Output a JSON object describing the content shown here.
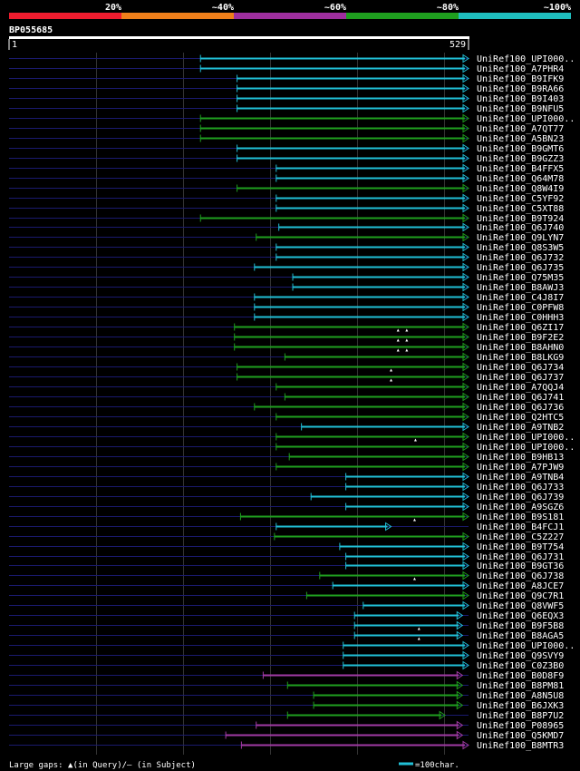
{
  "identity_scale": {
    "labels": [
      "20%",
      "~40%",
      "~60%",
      "~80%",
      "~100%"
    ],
    "colors": [
      "#ee1c2e",
      "#ef7f1a",
      "#9f2f9f",
      "#1f9f1f",
      "#1fbfbf"
    ]
  },
  "query": {
    "name": "BP055685",
    "start": "1",
    "end": "529",
    "length": 529
  },
  "hits": [
    {
      "label": "UniRef100_UPI000..",
      "start": 221,
      "end": 529,
      "color": "cyan",
      "marks": []
    },
    {
      "label": "UniRef100_A7PHR4",
      "start": 221,
      "end": 529,
      "color": "cyan",
      "marks": []
    },
    {
      "label": "UniRef100_B9IFK9",
      "start": 263,
      "end": 529,
      "color": "cyan",
      "marks": []
    },
    {
      "label": "UniRef100_B9RA66",
      "start": 263,
      "end": 529,
      "color": "cyan",
      "marks": []
    },
    {
      "label": "UniRef100_B9I403",
      "start": 263,
      "end": 529,
      "color": "cyan",
      "marks": []
    },
    {
      "label": "UniRef100_B9NFU5",
      "start": 263,
      "end": 529,
      "color": "cyan",
      "marks": []
    },
    {
      "label": "UniRef100_UPI000..",
      "start": 221,
      "end": 529,
      "color": "green",
      "marks": []
    },
    {
      "label": "UniRef100_A7QT77",
      "start": 221,
      "end": 529,
      "color": "green",
      "marks": []
    },
    {
      "label": "UniRef100_A5BN23",
      "start": 221,
      "end": 529,
      "color": "green",
      "marks": []
    },
    {
      "label": "UniRef100_B9GMT6",
      "start": 263,
      "end": 529,
      "color": "cyan",
      "marks": []
    },
    {
      "label": "UniRef100_B9GZZ3",
      "start": 263,
      "end": 529,
      "color": "cyan",
      "marks": []
    },
    {
      "label": "UniRef100_B4FFX5",
      "start": 308,
      "end": 529,
      "color": "cyan",
      "marks": []
    },
    {
      "label": "UniRef100_Q64M78",
      "start": 308,
      "end": 529,
      "color": "cyan",
      "marks": []
    },
    {
      "label": "UniRef100_Q8W4I9",
      "start": 263,
      "end": 529,
      "color": "green",
      "marks": []
    },
    {
      "label": "UniRef100_C5YF92",
      "start": 308,
      "end": 529,
      "color": "cyan",
      "marks": []
    },
    {
      "label": "UniRef100_C5XT88",
      "start": 308,
      "end": 529,
      "color": "cyan",
      "marks": []
    },
    {
      "label": "UniRef100_B9T924",
      "start": 221,
      "end": 529,
      "color": "green",
      "marks": []
    },
    {
      "label": "UniRef100_Q6J740",
      "start": 311,
      "end": 529,
      "color": "cyan",
      "marks": []
    },
    {
      "label": "UniRef100_Q9LYN7",
      "start": 285,
      "end": 529,
      "color": "green",
      "marks": []
    },
    {
      "label": "UniRef100_Q8S3W5",
      "start": 308,
      "end": 529,
      "color": "cyan",
      "marks": []
    },
    {
      "label": "UniRef100_Q6J732",
      "start": 308,
      "end": 529,
      "color": "cyan",
      "marks": []
    },
    {
      "label": "UniRef100_Q6J735",
      "start": 283,
      "end": 529,
      "color": "cyan",
      "marks": []
    },
    {
      "label": "UniRef100_Q75M35",
      "start": 327,
      "end": 529,
      "color": "cyan",
      "marks": []
    },
    {
      "label": "UniRef100_B8AWJ3",
      "start": 327,
      "end": 529,
      "color": "cyan",
      "marks": []
    },
    {
      "label": "UniRef100_C4J8I7",
      "start": 283,
      "end": 529,
      "color": "cyan",
      "marks": []
    },
    {
      "label": "UniRef100_C0PFW8",
      "start": 283,
      "end": 529,
      "color": "cyan",
      "marks": []
    },
    {
      "label": "UniRef100_C0HHH3",
      "start": 283,
      "end": 529,
      "color": "cyan",
      "marks": []
    },
    {
      "label": "UniRef100_Q6ZI17",
      "start": 260,
      "end": 529,
      "color": "green",
      "marks": [
        448,
        458
      ]
    },
    {
      "label": "UniRef100_B9F2E2",
      "start": 260,
      "end": 529,
      "color": "green",
      "marks": [
        448,
        458
      ]
    },
    {
      "label": "UniRef100_B8AHN0",
      "start": 260,
      "end": 529,
      "color": "green",
      "marks": [
        448,
        458
      ]
    },
    {
      "label": "UniRef100_B8LKG9",
      "start": 318,
      "end": 529,
      "color": "green",
      "marks": []
    },
    {
      "label": "UniRef100_Q6J734",
      "start": 263,
      "end": 529,
      "color": "green",
      "marks": [
        440
      ]
    },
    {
      "label": "UniRef100_Q6J737",
      "start": 263,
      "end": 529,
      "color": "green",
      "marks": [
        440
      ]
    },
    {
      "label": "UniRef100_A7QQJ4",
      "start": 308,
      "end": 529,
      "color": "green",
      "marks": []
    },
    {
      "label": "UniRef100_Q6J741",
      "start": 318,
      "end": 529,
      "color": "green",
      "marks": []
    },
    {
      "label": "UniRef100_Q6J736",
      "start": 283,
      "end": 529,
      "color": "green",
      "marks": []
    },
    {
      "label": "UniRef100_Q2HTC5",
      "start": 308,
      "end": 529,
      "color": "green",
      "marks": []
    },
    {
      "label": "UniRef100_A9TNB2",
      "start": 337,
      "end": 529,
      "color": "cyan",
      "marks": []
    },
    {
      "label": "UniRef100_UPI000..",
      "start": 308,
      "end": 529,
      "color": "green",
      "marks": [
        468
      ]
    },
    {
      "label": "UniRef100_UPI000..",
      "start": 308,
      "end": 529,
      "color": "green",
      "marks": []
    },
    {
      "label": "UniRef100_B9HB13",
      "start": 323,
      "end": 529,
      "color": "green",
      "marks": []
    },
    {
      "label": "UniRef100_A7PJW9",
      "start": 308,
      "end": 529,
      "color": "green",
      "marks": []
    },
    {
      "label": "UniRef100_A9TNB4",
      "start": 388,
      "end": 529,
      "color": "cyan",
      "marks": []
    },
    {
      "label": "UniRef100_Q6J733",
      "start": 388,
      "end": 529,
      "color": "cyan",
      "marks": []
    },
    {
      "label": "UniRef100_Q6J739",
      "start": 348,
      "end": 529,
      "color": "cyan",
      "marks": []
    },
    {
      "label": "UniRef100_A9SGZ6",
      "start": 388,
      "end": 529,
      "color": "cyan",
      "marks": []
    },
    {
      "label": "UniRef100_B9S181",
      "start": 267,
      "end": 529,
      "color": "green",
      "marks": [
        467
      ]
    },
    {
      "label": "UniRef100_B4FCJ1",
      "start": 308,
      "end": 440,
      "color": "cyan",
      "marks": []
    },
    {
      "label": "UniRef100_C5Z227",
      "start": 306,
      "end": 529,
      "color": "green",
      "marks": []
    },
    {
      "label": "UniRef100_B9T754",
      "start": 381,
      "end": 529,
      "color": "cyan",
      "marks": []
    },
    {
      "label": "UniRef100_Q6J731",
      "start": 388,
      "end": 529,
      "color": "cyan",
      "marks": []
    },
    {
      "label": "UniRef100_B9GT36",
      "start": 388,
      "end": 529,
      "color": "cyan",
      "marks": []
    },
    {
      "label": "UniRef100_Q6J738",
      "start": 358,
      "end": 529,
      "color": "green",
      "marks": [
        467
      ]
    },
    {
      "label": "UniRef100_A8JCE7",
      "start": 373,
      "end": 529,
      "color": "cyan",
      "marks": []
    },
    {
      "label": "UniRef100_Q9C7R1",
      "start": 343,
      "end": 529,
      "color": "green",
      "marks": []
    },
    {
      "label": "UniRef100_Q8VWF5",
      "start": 408,
      "end": 529,
      "color": "cyan",
      "marks": []
    },
    {
      "label": "UniRef100_Q6EQX3",
      "start": 398,
      "end": 522,
      "color": "cyan",
      "marks": []
    },
    {
      "label": "UniRef100_B9F5B8",
      "start": 398,
      "end": 522,
      "color": "cyan",
      "marks": [
        472
      ]
    },
    {
      "label": "UniRef100_B8AGA5",
      "start": 398,
      "end": 522,
      "color": "cyan",
      "marks": [
        472
      ]
    },
    {
      "label": "UniRef100_UPI000..",
      "start": 385,
      "end": 529,
      "color": "cyan",
      "marks": []
    },
    {
      "label": "UniRef100_Q9SVY9",
      "start": 385,
      "end": 529,
      "color": "cyan",
      "marks": []
    },
    {
      "label": "UniRef100_C0Z3B0",
      "start": 385,
      "end": 529,
      "color": "cyan",
      "marks": []
    },
    {
      "label": "UniRef100_B0D8F9",
      "start": 293,
      "end": 522,
      "color": "magenta",
      "marks": []
    },
    {
      "label": "UniRef100_B8PM81",
      "start": 321,
      "end": 522,
      "color": "green",
      "marks": []
    },
    {
      "label": "UniRef100_A8N5U8",
      "start": 351,
      "end": 522,
      "color": "green",
      "marks": []
    },
    {
      "label": "UniRef100_B6JXK3",
      "start": 351,
      "end": 522,
      "color": "green",
      "marks": []
    },
    {
      "label": "UniRef100_B8P7U2",
      "start": 321,
      "end": 502,
      "color": "green",
      "marks": []
    },
    {
      "label": "UniRef100_P08965",
      "start": 285,
      "end": 522,
      "color": "magenta",
      "marks": []
    },
    {
      "label": "UniRef100_Q5KMD7",
      "start": 250,
      "end": 522,
      "color": "magenta",
      "marks": []
    },
    {
      "label": "UniRef100_B8MTR3",
      "start": 268,
      "end": 529,
      "color": "magenta",
      "marks": []
    }
  ],
  "colors": {
    "cyan": "#21bfd6",
    "green": "#1f9f1f",
    "magenta": "#a03aa3",
    "line": "#1a1a6e",
    "grid": "#333333",
    "mark": "#ffffff"
  },
  "legend": {
    "gaps_text": "Large gaps: ▲(in Query)/— (in Subject)",
    "scale_text": "=100char."
  }
}
